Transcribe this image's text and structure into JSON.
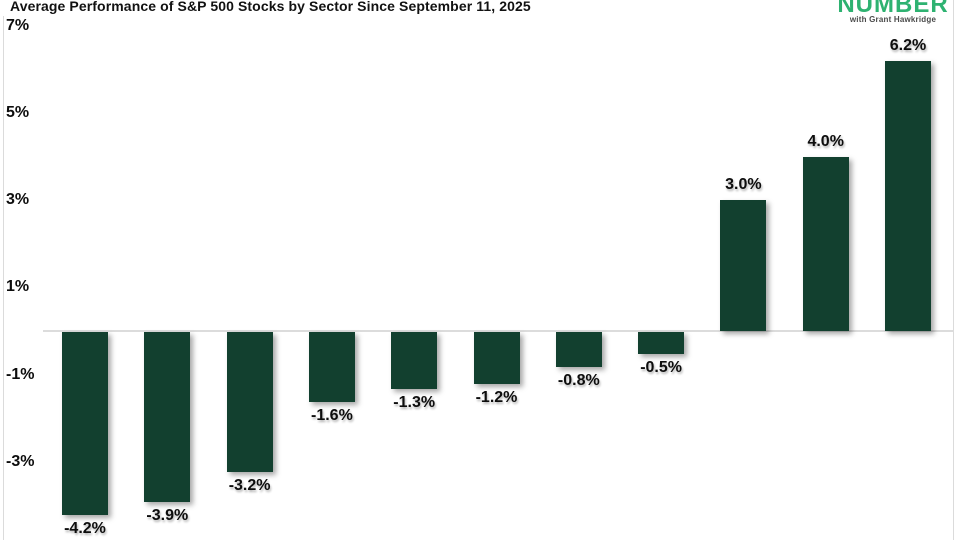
{
  "logo": {
    "name": "NUMBER",
    "tagline": "with Grant Hawkridge",
    "color": "#2eb271"
  },
  "chart_data": {
    "type": "bar",
    "title": "Average Performance of S&P 500 Stocks by Sector Since September 11, 2025",
    "values": [
      -4.2,
      -3.9,
      -3.2,
      -1.6,
      -1.3,
      -1.2,
      -0.8,
      -0.5,
      3.0,
      4.0,
      6.2
    ],
    "bar_labels": [
      "-4.2%",
      "-3.9%",
      "-3.2%",
      "-1.6%",
      "-1.3%",
      "-1.2%",
      "-0.8%",
      "-0.5%",
      "3.0%",
      "4.0%",
      "6.2%"
    ],
    "y_ticks": [
      {
        "value": 7,
        "label": "7%"
      },
      {
        "value": 5,
        "label": "5%"
      },
      {
        "value": 3,
        "label": "3%"
      },
      {
        "value": 1,
        "label": "1%"
      },
      {
        "value": -1,
        "label": "-1%"
      },
      {
        "value": -3,
        "label": "-3%"
      }
    ],
    "ylim": [
      -4.8,
      7.6
    ],
    "ylabel": "",
    "xlabel": "",
    "grid": false,
    "legend": false,
    "bar_color": "#12402f",
    "baseline_color": "#dcdcdc"
  }
}
